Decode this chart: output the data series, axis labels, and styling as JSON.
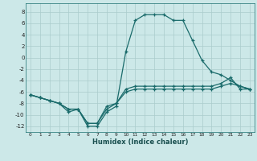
{
  "xlabel": "Humidex (Indice chaleur)",
  "background_color": "#cce8e8",
  "grid_color": "#aacccc",
  "line_color": "#1a6b6b",
  "xlim": [
    -0.5,
    23.5
  ],
  "ylim": [
    -13,
    9.5
  ],
  "xticks": [
    0,
    1,
    2,
    3,
    4,
    5,
    6,
    7,
    8,
    9,
    10,
    11,
    12,
    13,
    14,
    15,
    16,
    17,
    18,
    19,
    20,
    21,
    22,
    23
  ],
  "yticks": [
    -12,
    -10,
    -8,
    -6,
    -4,
    -2,
    0,
    2,
    4,
    6,
    8
  ],
  "line1_x": [
    0,
    1,
    2,
    3,
    4,
    5,
    6,
    7,
    8,
    9,
    10,
    11,
    12,
    13,
    14,
    15,
    16,
    17,
    18,
    19,
    20,
    21,
    22,
    23
  ],
  "line1_y": [
    -6.5,
    -7.0,
    -7.5,
    -8.0,
    -9.5,
    -9.0,
    -12.0,
    -12.0,
    -9.5,
    -8.5,
    1.0,
    6.5,
    7.5,
    7.5,
    7.5,
    6.5,
    6.5,
    3.0,
    -0.5,
    -2.5,
    -3.0,
    -4.0,
    -5.0,
    -5.5
  ],
  "line2_x": [
    0,
    1,
    2,
    3,
    4,
    5,
    6,
    7,
    8,
    9,
    10,
    11,
    12,
    13,
    14,
    15,
    16,
    17,
    18,
    19,
    20,
    21,
    22,
    23
  ],
  "line2_y": [
    -6.5,
    -7.0,
    -7.5,
    -8.0,
    -9.0,
    -9.0,
    -11.5,
    -11.5,
    -8.5,
    -8.0,
    -5.5,
    -5.0,
    -5.0,
    -5.0,
    -5.0,
    -5.0,
    -5.0,
    -5.0,
    -5.0,
    -5.0,
    -4.5,
    -3.5,
    -5.5,
    -5.5
  ],
  "line3_x": [
    0,
    1,
    2,
    3,
    4,
    5,
    6,
    7,
    8,
    9,
    10,
    11,
    12,
    13,
    14,
    15,
    16,
    17,
    18,
    19,
    20,
    21,
    22,
    23
  ],
  "line3_y": [
    -6.5,
    -7.0,
    -7.5,
    -8.0,
    -9.0,
    -9.0,
    -11.5,
    -11.5,
    -9.0,
    -8.0,
    -6.0,
    -5.5,
    -5.5,
    -5.5,
    -5.5,
    -5.5,
    -5.5,
    -5.5,
    -5.5,
    -5.5,
    -5.0,
    -4.5,
    -5.0,
    -5.5
  ]
}
